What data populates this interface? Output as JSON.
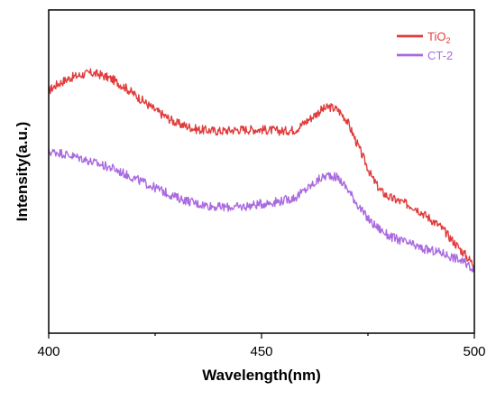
{
  "chart_data": {
    "type": "line",
    "title": "",
    "xlabel": "Wavelength(nm)",
    "ylabel": "Intensity(a.u.)",
    "xlim": [
      400,
      500
    ],
    "ylim": [
      0,
      1
    ],
    "x_ticks": [
      400,
      450,
      500
    ],
    "y_ticks_shown": false,
    "grid": false,
    "legend_position": "top-right",
    "series": [
      {
        "name": "TiO₂",
        "name_parts": {
          "base": "TiO",
          "sub": "2"
        },
        "color": "#e03c3c",
        "x": [
          400,
          402,
          405,
          408,
          410,
          412,
          415,
          418,
          420,
          425,
          430,
          435,
          440,
          445,
          450,
          455,
          458,
          460,
          462,
          464,
          466,
          468,
          470,
          472,
          474,
          476,
          478,
          480,
          482,
          484,
          486,
          488,
          490,
          492,
          494,
          496,
          498,
          500
        ],
        "values": [
          0.75,
          0.77,
          0.79,
          0.8,
          0.805,
          0.8,
          0.785,
          0.76,
          0.74,
          0.69,
          0.65,
          0.63,
          0.625,
          0.63,
          0.63,
          0.625,
          0.63,
          0.65,
          0.67,
          0.69,
          0.7,
          0.69,
          0.66,
          0.6,
          0.54,
          0.48,
          0.44,
          0.42,
          0.41,
          0.4,
          0.39,
          0.37,
          0.35,
          0.33,
          0.3,
          0.27,
          0.24,
          0.21
        ]
      },
      {
        "name": "CT-2",
        "color": "#aa6adf",
        "x": [
          400,
          402,
          405,
          408,
          410,
          415,
          420,
          425,
          430,
          435,
          440,
          445,
          450,
          455,
          458,
          460,
          462,
          464,
          466,
          468,
          470,
          472,
          474,
          476,
          478,
          480,
          482,
          484,
          486,
          488,
          490,
          492,
          494,
          496,
          498,
          500
        ],
        "values": [
          0.56,
          0.56,
          0.55,
          0.54,
          0.53,
          0.51,
          0.48,
          0.45,
          0.42,
          0.4,
          0.39,
          0.39,
          0.4,
          0.41,
          0.42,
          0.44,
          0.46,
          0.48,
          0.49,
          0.48,
          0.45,
          0.41,
          0.37,
          0.34,
          0.32,
          0.3,
          0.29,
          0.28,
          0.27,
          0.26,
          0.255,
          0.25,
          0.24,
          0.23,
          0.215,
          0.2
        ]
      }
    ]
  }
}
